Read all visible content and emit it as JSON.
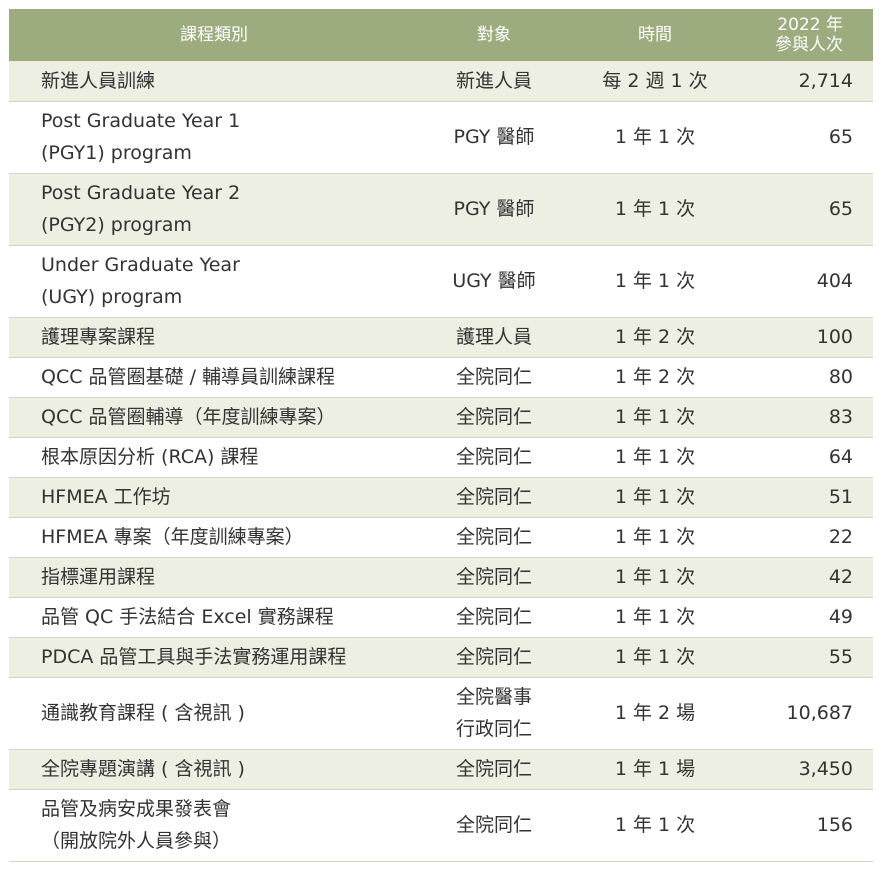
{
  "table": {
    "headers": {
      "category": "課程類別",
      "target": "對象",
      "time": "時間",
      "count": "2022 年\n參與人次"
    },
    "rows": [
      {
        "name": "新進人員訓練",
        "target": "新進人員",
        "time": "每 2 週 1 次",
        "count": "2,714",
        "shade": true,
        "h": 40
      },
      {
        "name": "Post Graduate Year 1\n(PGY1) program",
        "target": "PGY 醫師",
        "time": "1 年 1 次",
        "count": "65",
        "shade": false,
        "h": 72
      },
      {
        "name": "Post Graduate Year 2\n(PGY2) program",
        "target": "PGY 醫師",
        "time": "1 年 1 次",
        "count": "65",
        "shade": true,
        "h": 72
      },
      {
        "name": "Under Graduate Year\n(UGY) program",
        "target": "UGY 醫師",
        "time": "1 年 1 次",
        "count": "404",
        "shade": false,
        "h": 72
      },
      {
        "name": "護理專案課程",
        "target": "護理人員",
        "time": "1 年 2 次",
        "count": "100",
        "shade": true,
        "h": 40
      },
      {
        "name": "QCC 品管圈基礎 / 輔導員訓練課程",
        "target": "全院同仁",
        "time": "1 年 2 次",
        "count": "80",
        "shade": false,
        "h": 40
      },
      {
        "name": "QCC 品管圈輔導（年度訓練專案）",
        "target": "全院同仁",
        "time": "1 年 1 次",
        "count": "83",
        "shade": true,
        "h": 40
      },
      {
        "name": "根本原因分析 (RCA) 課程",
        "target": "全院同仁",
        "time": "1 年 1 次",
        "count": "64",
        "shade": false,
        "h": 40
      },
      {
        "name": "HFMEA 工作坊",
        "target": "全院同仁",
        "time": "1 年 1 次",
        "count": "51",
        "shade": true,
        "h": 40
      },
      {
        "name": "HFMEA 專案（年度訓練專案）",
        "target": "全院同仁",
        "time": "1 年 1 次",
        "count": "22",
        "shade": false,
        "h": 40
      },
      {
        "name": "指標運用課程",
        "target": "全院同仁",
        "time": "1 年 1 次",
        "count": "42",
        "shade": true,
        "h": 40
      },
      {
        "name": "品管 QC 手法結合 Excel 實務課程",
        "target": "全院同仁",
        "time": "1 年 1 次",
        "count": "49",
        "shade": false,
        "h": 40
      },
      {
        "name": "PDCA 品管工具與手法實務運用課程",
        "target": "全院同仁",
        "time": "1 年 1 次",
        "count": "55",
        "shade": true,
        "h": 40
      },
      {
        "name": "通識教育課程 ( 含視訊 )",
        "target": "全院醫事\n行政同仁",
        "time": "1 年 2 場",
        "count": "10,687",
        "shade": false,
        "h": 72
      },
      {
        "name": "全院專題演講 ( 含視訊 )",
        "target": "全院同仁",
        "time": "1 年 1 場",
        "count": "3,450",
        "shade": true,
        "h": 40
      },
      {
        "name": "品管及病安成果發表會\n（開放院外人員參與）",
        "target": "全院同仁",
        "time": "1 年 1 次",
        "count": "156",
        "shade": false,
        "h": 72
      }
    ]
  }
}
